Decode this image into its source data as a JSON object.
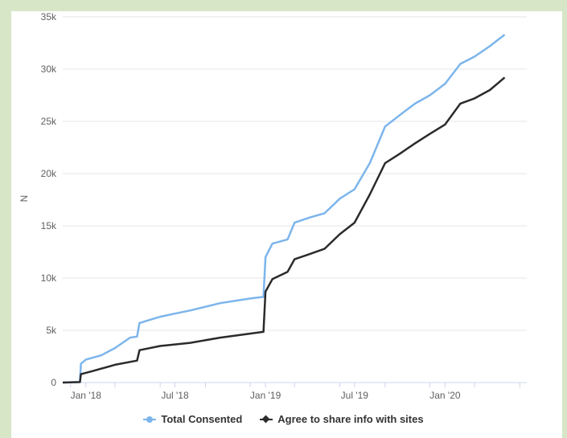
{
  "chart_data": {
    "type": "line",
    "ylabel": "N",
    "xlabel": "",
    "ylim": [
      0,
      35000
    ],
    "y_ticks": [
      {
        "value": 0,
        "label": "0"
      },
      {
        "value": 5000,
        "label": "5k"
      },
      {
        "value": 10000,
        "label": "10k"
      },
      {
        "value": 15000,
        "label": "15k"
      },
      {
        "value": 20000,
        "label": "20k"
      },
      {
        "value": 25000,
        "label": "25k"
      },
      {
        "value": 30000,
        "label": "30k"
      },
      {
        "value": 35000,
        "label": "35k"
      }
    ],
    "x_ticks": [
      {
        "date": "2018-01-01",
        "label": "Jan '18"
      },
      {
        "date": "2018-07-01",
        "label": "Jul '18"
      },
      {
        "date": "2019-01-01",
        "label": "Jan '19"
      },
      {
        "date": "2019-07-01",
        "label": "Jul '19"
      },
      {
        "date": "2020-01-01",
        "label": "Jan '20"
      }
    ],
    "x_range": [
      "2017-11-15",
      "2020-06-15"
    ],
    "grid": "horizontal",
    "legend_position": "bottom",
    "series": [
      {
        "name": "Total Consented",
        "color": "#7cb5ec",
        "marker": "circle",
        "points": [
          {
            "x": "2017-11-15",
            "y": 0
          },
          {
            "x": "2017-12-20",
            "y": 50
          },
          {
            "x": "2017-12-22",
            "y": 1800
          },
          {
            "x": "2018-01-01",
            "y": 2200
          },
          {
            "x": "2018-02-01",
            "y": 2600
          },
          {
            "x": "2018-03-01",
            "y": 3300
          },
          {
            "x": "2018-04-01",
            "y": 4300
          },
          {
            "x": "2018-04-15",
            "y": 4400
          },
          {
            "x": "2018-04-20",
            "y": 5700
          },
          {
            "x": "2018-06-01",
            "y": 6300
          },
          {
            "x": "2018-07-01",
            "y": 6600
          },
          {
            "x": "2018-08-01",
            "y": 6900
          },
          {
            "x": "2018-10-01",
            "y": 7600
          },
          {
            "x": "2018-12-01",
            "y": 8050
          },
          {
            "x": "2018-12-28",
            "y": 8200
          },
          {
            "x": "2019-01-01",
            "y": 12000
          },
          {
            "x": "2019-01-15",
            "y": 13300
          },
          {
            "x": "2019-02-15",
            "y": 13700
          },
          {
            "x": "2019-03-01",
            "y": 15300
          },
          {
            "x": "2019-04-01",
            "y": 15800
          },
          {
            "x": "2019-05-01",
            "y": 16200
          },
          {
            "x": "2019-06-01",
            "y": 17600
          },
          {
            "x": "2019-07-01",
            "y": 18500
          },
          {
            "x": "2019-08-01",
            "y": 21000
          },
          {
            "x": "2019-09-01",
            "y": 24500
          },
          {
            "x": "2019-10-01",
            "y": 25600
          },
          {
            "x": "2019-11-01",
            "y": 26700
          },
          {
            "x": "2019-12-01",
            "y": 27500
          },
          {
            "x": "2020-01-01",
            "y": 28600
          },
          {
            "x": "2020-02-01",
            "y": 30500
          },
          {
            "x": "2020-03-01",
            "y": 31200
          },
          {
            "x": "2020-04-01",
            "y": 32200
          },
          {
            "x": "2020-05-01",
            "y": 33300
          }
        ]
      },
      {
        "name": "Agree to share info with sites",
        "color": "#2b2b2b",
        "marker": "diamond",
        "points": [
          {
            "x": "2017-11-15",
            "y": 0
          },
          {
            "x": "2017-12-20",
            "y": 50
          },
          {
            "x": "2017-12-22",
            "y": 800
          },
          {
            "x": "2018-01-15",
            "y": 1100
          },
          {
            "x": "2018-03-01",
            "y": 1700
          },
          {
            "x": "2018-04-15",
            "y": 2100
          },
          {
            "x": "2018-04-20",
            "y": 3100
          },
          {
            "x": "2018-06-01",
            "y": 3500
          },
          {
            "x": "2018-08-01",
            "y": 3800
          },
          {
            "x": "2018-10-01",
            "y": 4300
          },
          {
            "x": "2018-12-28",
            "y": 4850
          },
          {
            "x": "2019-01-01",
            "y": 8700
          },
          {
            "x": "2019-01-15",
            "y": 9900
          },
          {
            "x": "2019-02-15",
            "y": 10600
          },
          {
            "x": "2019-03-01",
            "y": 11800
          },
          {
            "x": "2019-04-01",
            "y": 12300
          },
          {
            "x": "2019-05-01",
            "y": 12800
          },
          {
            "x": "2019-06-01",
            "y": 14200
          },
          {
            "x": "2019-07-01",
            "y": 15300
          },
          {
            "x": "2019-08-01",
            "y": 18000
          },
          {
            "x": "2019-09-01",
            "y": 21000
          },
          {
            "x": "2019-10-01",
            "y": 21900
          },
          {
            "x": "2019-11-01",
            "y": 22900
          },
          {
            "x": "2019-12-01",
            "y": 23800
          },
          {
            "x": "2020-01-01",
            "y": 24700
          },
          {
            "x": "2020-02-01",
            "y": 26700
          },
          {
            "x": "2020-03-01",
            "y": 27200
          },
          {
            "x": "2020-04-01",
            "y": 28000
          },
          {
            "x": "2020-05-01",
            "y": 29200
          }
        ]
      }
    ]
  }
}
